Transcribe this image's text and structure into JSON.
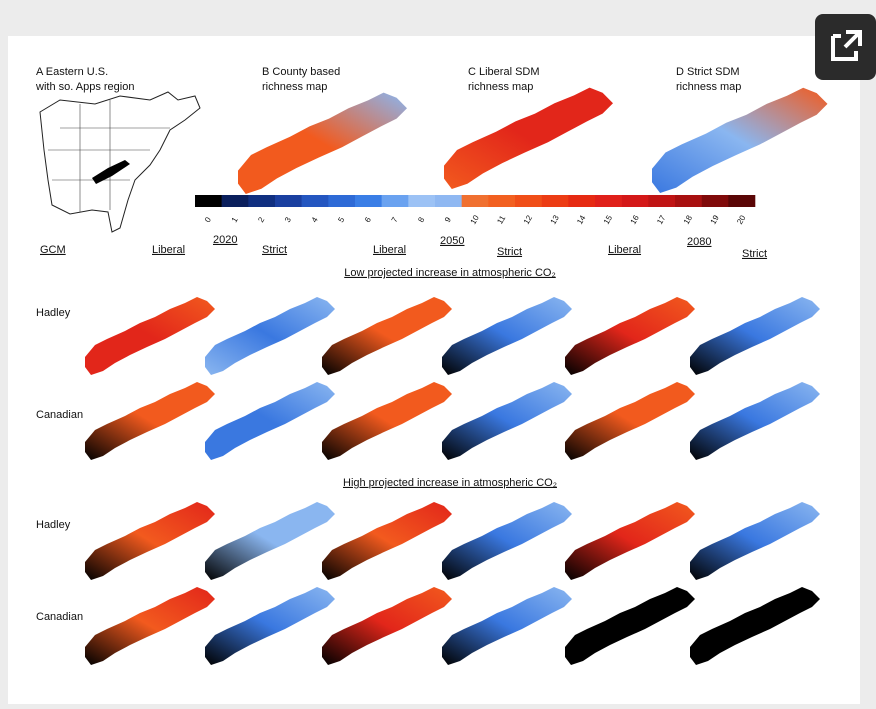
{
  "panels": [
    {
      "label": "A Eastern U.S.",
      "caption": "with so. Apps region"
    },
    {
      "label": "B County based",
      "caption": "richness map"
    },
    {
      "label": "C Liberal SDM",
      "caption": "richness map"
    },
    {
      "label": "D Strict SDM",
      "caption": "richness map"
    }
  ],
  "colorbar": {
    "ticks": [
      0,
      1,
      2,
      3,
      4,
      5,
      6,
      7,
      8,
      9,
      10,
      11,
      12,
      13,
      14,
      15,
      16,
      17,
      18,
      19,
      20
    ]
  },
  "headers": [
    "GCM",
    "Liberal",
    "2020",
    "Strict",
    "Liberal",
    "2050",
    "Strict",
    "Liberal",
    "2080",
    "Strict"
  ],
  "sections": [
    {
      "title": "Low projected increase in atmospheric CO₂",
      "rows": [
        "Hadley",
        "Canadian"
      ]
    },
    {
      "title": "High projected increase in atmospheric CO₂",
      "rows": [
        "Hadley",
        "Canadian"
      ]
    }
  ]
}
